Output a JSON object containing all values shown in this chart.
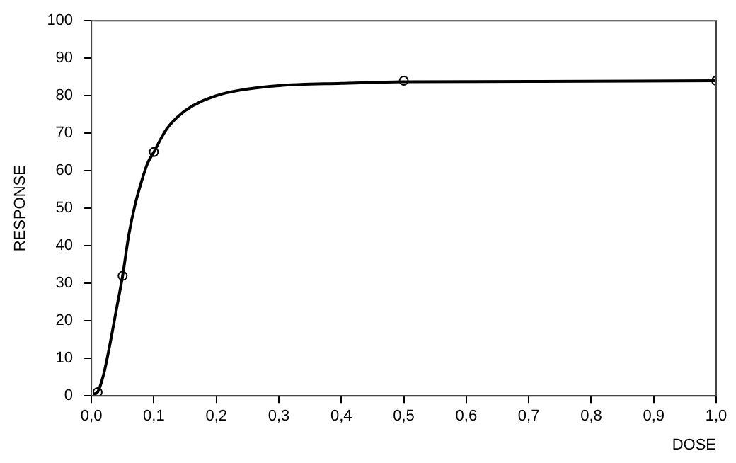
{
  "chart_data": {
    "type": "scatter",
    "xlabel": "DOSE",
    "ylabel": "RESPONSE",
    "xlim": [
      0,
      1
    ],
    "ylim": [
      0,
      100
    ],
    "xticks": [
      {
        "value": 0,
        "label": "0,0"
      },
      {
        "value": 0.1,
        "label": "0,1"
      },
      {
        "value": 0.2,
        "label": "0,2"
      },
      {
        "value": 0.3,
        "label": "0,3"
      },
      {
        "value": 0.4,
        "label": "0,4"
      },
      {
        "value": 0.5,
        "label": "0,5"
      },
      {
        "value": 0.6,
        "label": "0,6"
      },
      {
        "value": 0.7,
        "label": "0,7"
      },
      {
        "value": 0.8,
        "label": "0,8"
      },
      {
        "value": 0.9,
        "label": "0,9"
      },
      {
        "value": 1,
        "label": "1,0"
      }
    ],
    "yticks": [
      0,
      10,
      20,
      30,
      40,
      50,
      60,
      70,
      80,
      90,
      100
    ],
    "grid": false,
    "legend": false,
    "series": [
      {
        "type": "scatter",
        "color": "#000000",
        "marker": "circle",
        "x": [
          0.01,
          0.05,
          0.1,
          0.5,
          1.0
        ],
        "values": [
          1,
          32,
          65,
          84,
          84
        ]
      },
      {
        "type": "line",
        "color": "#000000",
        "marker": "none",
        "x": [
          0.005,
          0.01,
          0.02,
          0.03,
          0.04,
          0.05,
          0.06,
          0.07,
          0.08,
          0.09,
          0.1,
          0.12,
          0.15,
          0.2,
          0.25,
          0.3,
          0.4,
          0.5,
          0.7,
          1.0
        ],
        "values": [
          0.5,
          1,
          6,
          14,
          23,
          32,
          43,
          51,
          57,
          62,
          65,
          71,
          76,
          80,
          81.8,
          82.7,
          83.3,
          83.7,
          83.8,
          84
        ]
      }
    ]
  }
}
